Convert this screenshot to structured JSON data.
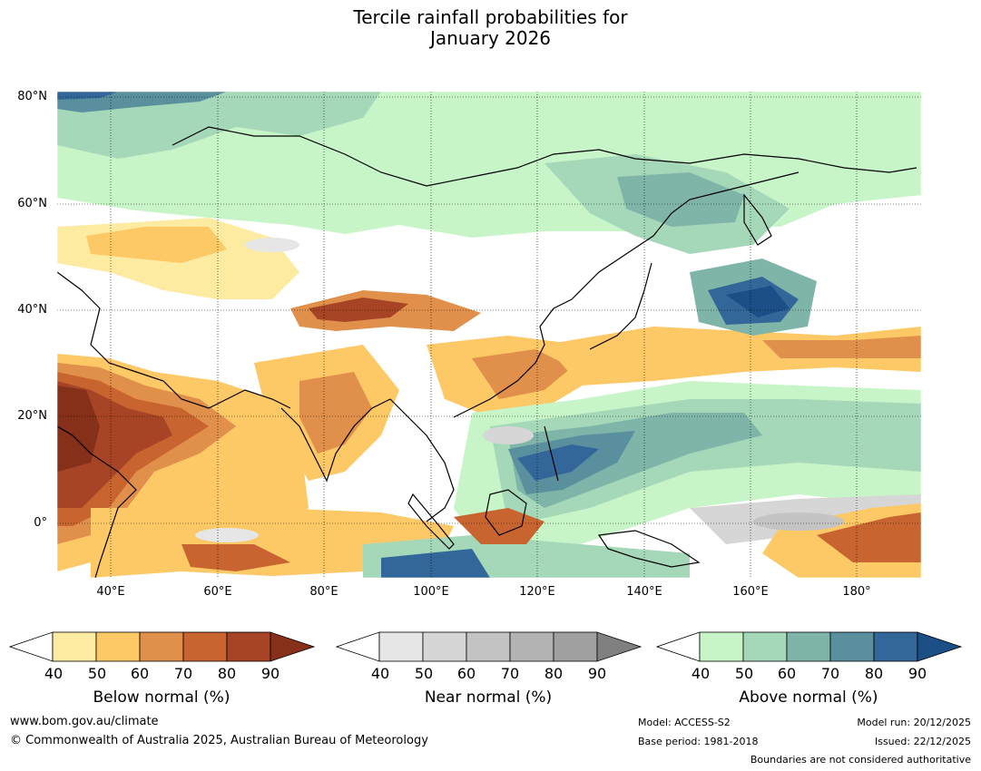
{
  "title_line1": "Tercile rainfall probabilities for",
  "title_line2": "January 2026",
  "map": {
    "lat_labels": [
      "80°N",
      "60°N",
      "40°N",
      "20°N",
      "0°"
    ],
    "lon_labels": [
      "40°E",
      "60°E",
      "80°E",
      "100°E",
      "120°E",
      "140°E",
      "160°E",
      "180°"
    ],
    "extent": {
      "lon_min": 30,
      "lon_max": 192,
      "lat_min": -10,
      "lat_max": 81
    }
  },
  "legends": [
    {
      "title": "Below normal (%)",
      "ticks": [
        "40",
        "50",
        "60",
        "70",
        "80",
        "90"
      ],
      "colors": [
        "#ffffff",
        "#feeba2",
        "#fdc866",
        "#e0904a",
        "#c8642f",
        "#a74425",
        "#86301a"
      ]
    },
    {
      "title": "Near normal (%)",
      "ticks": [
        "40",
        "50",
        "60",
        "70",
        "80",
        "90"
      ],
      "colors": [
        "#ffffff",
        "#e6e6e6",
        "#d6d6d6",
        "#c4c4c4",
        "#b3b3b3",
        "#a0a0a0",
        "#808080"
      ]
    },
    {
      "title": "Above normal (%)",
      "ticks": [
        "40",
        "50",
        "60",
        "70",
        "80",
        "90"
      ],
      "colors": [
        "#ffffff",
        "#c8f5c8",
        "#a5d8b9",
        "#7fb5a8",
        "#5a8f9e",
        "#336699",
        "#1b4f86"
      ]
    }
  ],
  "footer": {
    "url": "www.bom.gov.au/climate",
    "copyright": "© Commonwealth of Australia 2025, Australian Bureau of Meteorology",
    "model": "Model: ACCESS-S2",
    "base_period": "Base period: 1981-2018",
    "model_run": "Model run: 20/12/2025",
    "issued": "Issued: 22/12/2025",
    "boundaries": "Boundaries are not considered authoritative"
  }
}
